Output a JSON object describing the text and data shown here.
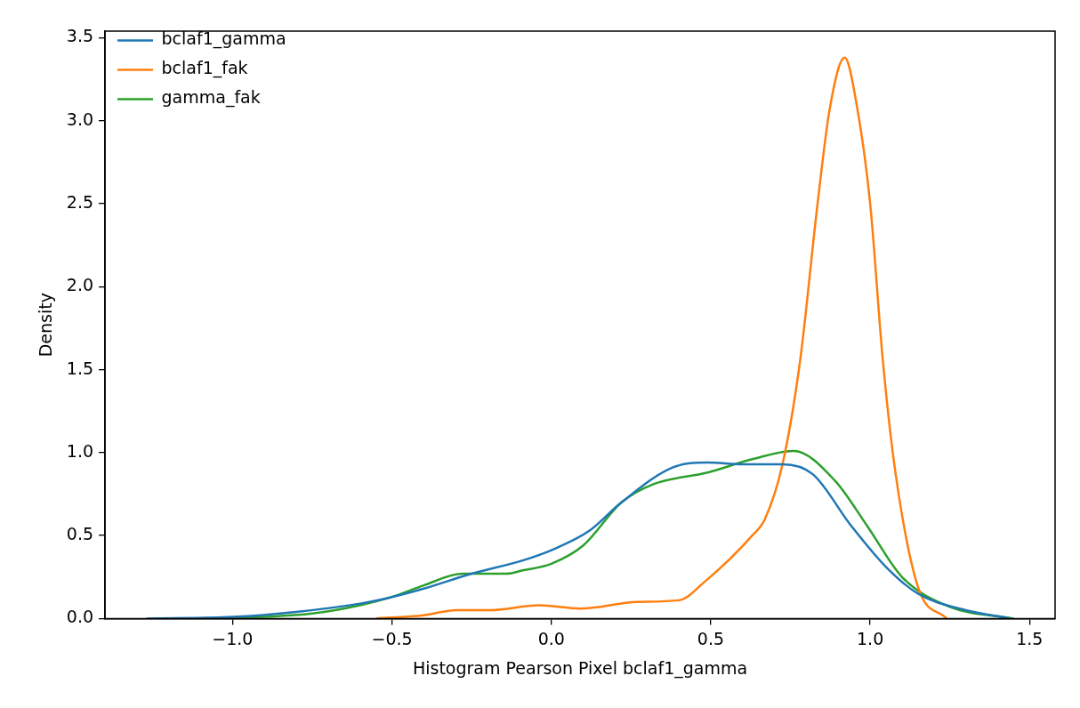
{
  "chart_data": {
    "type": "line",
    "xlabel": "Histogram Pearson Pixel bclaf1_gamma",
    "ylabel": "Density",
    "xlim": [
      -1.4,
      1.58
    ],
    "ylim": [
      0,
      3.54
    ],
    "xticks": [
      {
        "value": -1,
        "label": "−1.0"
      },
      {
        "value": -0.5,
        "label": "−0.5"
      },
      {
        "value": 0,
        "label": "0.0"
      },
      {
        "value": 0.5,
        "label": "0.5"
      },
      {
        "value": 1,
        "label": "1.0"
      },
      {
        "value": 1.5,
        "label": "1.5"
      }
    ],
    "yticks": [
      {
        "value": 0,
        "label": "0.0"
      },
      {
        "value": 0.5,
        "label": "0.5"
      },
      {
        "value": 1,
        "label": "1.0"
      },
      {
        "value": 1.5,
        "label": "1.5"
      },
      {
        "value": 2,
        "label": "2.0"
      },
      {
        "value": 2.5,
        "label": "2.5"
      },
      {
        "value": 3,
        "label": "3.0"
      },
      {
        "value": 3.5,
        "label": "3.5"
      }
    ],
    "grid": false,
    "legend": "top left",
    "marker": "none",
    "line_style": "solid",
    "series": [
      {
        "name": "bclaf1_gamma",
        "color": "#1f77b4",
        "x": [
          -1.27,
          -1.0,
          -0.8,
          -0.6,
          -0.52,
          -0.4,
          -0.25,
          -0.09,
          0.01,
          0.12,
          0.22,
          0.38,
          0.49,
          0.6,
          0.725,
          0.82,
          0.94,
          1.05,
          1.15,
          1.3,
          1.44
        ],
        "values": [
          0,
          0.01,
          0.04,
          0.09,
          0.12,
          0.18,
          0.27,
          0.35,
          0.42,
          0.53,
          0.7,
          0.91,
          0.94,
          0.93,
          0.93,
          0.87,
          0.56,
          0.31,
          0.15,
          0.05,
          0
        ]
      },
      {
        "name": "bclaf1_fak",
        "color": "#ff7f0e",
        "x": [
          -0.55,
          -0.4,
          -0.3,
          -0.19,
          -0.04,
          0.09,
          0.27,
          0.4,
          0.48,
          0.63,
          0.67,
          0.725,
          0.78,
          0.835,
          0.873,
          0.92,
          0.96,
          1.0,
          1.04,
          1.08,
          1.15,
          1.24
        ],
        "values": [
          0,
          0.02,
          0.05,
          0.05,
          0.08,
          0.06,
          0.1,
          0.11,
          0.22,
          0.5,
          0.6,
          0.93,
          1.55,
          2.5,
          3.07,
          3.38,
          3.07,
          2.5,
          1.55,
          0.87,
          0.19,
          0
        ]
      },
      {
        "name": "gamma_fak",
        "color": "#2ca02c",
        "x": [
          -1.07,
          -0.9,
          -0.75,
          -0.6,
          -0.5,
          -0.4,
          -0.28,
          -0.14,
          -0.09,
          0.0,
          0.1,
          0.22,
          0.32,
          0.49,
          0.63,
          0.76,
          0.89,
          0.99,
          1.1,
          1.25,
          1.45
        ],
        "values": [
          0,
          0.01,
          0.03,
          0.08,
          0.13,
          0.2,
          0.27,
          0.27,
          0.29,
          0.33,
          0.44,
          0.7,
          0.81,
          0.88,
          0.96,
          1.01,
          0.83,
          0.56,
          0.25,
          0.07,
          0
        ]
      }
    ]
  }
}
